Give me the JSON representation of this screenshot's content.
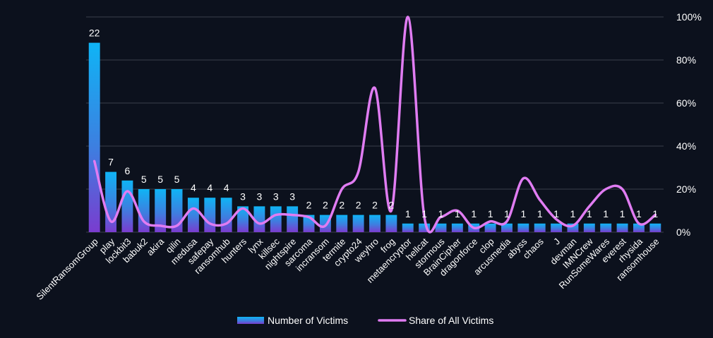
{
  "chart_data": {
    "type": "bar",
    "categories": [
      "SilentRansomGroup",
      "play",
      "lockbit3",
      "babuk2",
      "akira",
      "qilin",
      "medusa",
      "safepay",
      "ransomhub",
      "hunters",
      "lynx",
      "killsec",
      "nightspire",
      "sarcoma",
      "incransom",
      "termite",
      "crypto24",
      "weyhro",
      "frog",
      "metaencryptor",
      "hellcat",
      "stormous",
      "BrainCipher",
      "dragonforce",
      "clop",
      "arcusmedia",
      "abyss",
      "chaos",
      "J",
      "devman",
      "IMNCrew",
      "RunSomeWares",
      "everest",
      "rhysida",
      "ransomhouse"
    ],
    "series": [
      {
        "name": "Number of Victims",
        "type": "bar",
        "axis": "left",
        "values": [
          22,
          7,
          6,
          5,
          5,
          5,
          4,
          4,
          4,
          3,
          3,
          3,
          3,
          2,
          2,
          2,
          2,
          2,
          2,
          1,
          1,
          1,
          1,
          1,
          1,
          1,
          1,
          1,
          1,
          1,
          1,
          1,
          1,
          1,
          1
        ]
      },
      {
        "name": "Share of All Victims",
        "type": "line",
        "axis": "right",
        "values": [
          33,
          5,
          19,
          5,
          3,
          3,
          11,
          4,
          4,
          11,
          4,
          8,
          8,
          7,
          3,
          20,
          28,
          67,
          10,
          100,
          7,
          7,
          10,
          2,
          5,
          5,
          25,
          15,
          6,
          3,
          12,
          20,
          20,
          4,
          8
        ]
      }
    ],
    "y_left_lim": [
      0,
      25
    ],
    "y_right_lim": [
      0,
      100
    ],
    "y_right_ticks": [
      0,
      20,
      40,
      60,
      80,
      100
    ],
    "y_right_tick_labels": [
      "0%",
      "20%",
      "40%",
      "60%",
      "80%",
      "100%"
    ],
    "grid": true,
    "legend_position": "bottom",
    "colors": {
      "background": "#0c111d",
      "bar_top": "#0fb4f5",
      "bar_bottom": "#7a3ccf",
      "line": "#e07cf2",
      "grid": "#3a3f4a",
      "text": "#ffffff"
    }
  }
}
